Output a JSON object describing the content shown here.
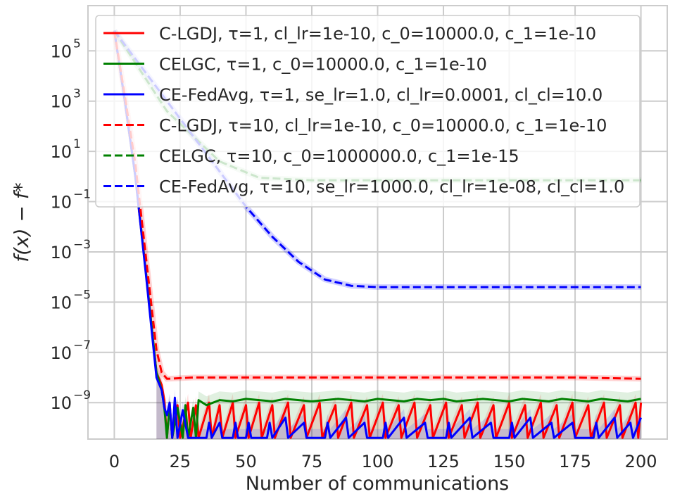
{
  "chart_data": {
    "type": "line",
    "title": "",
    "xlabel": "Number of communications",
    "ylabel": "f(x) − f*",
    "xlim": [
      -10,
      210
    ],
    "ylim_log10": [
      -10.45,
      6.8
    ],
    "y_scale": "log",
    "grid": true,
    "legend_position": "top-left",
    "x_ticks": [
      0,
      25,
      50,
      75,
      100,
      125,
      150,
      175,
      200
    ],
    "y_ticks": [
      {
        "base": "10",
        "exp": "5",
        "log": 5
      },
      {
        "base": "10",
        "exp": "3",
        "log": 3
      },
      {
        "base": "10",
        "exp": "1",
        "log": 1
      },
      {
        "base": "10",
        "exp": "−1",
        "log": -1
      },
      {
        "base": "10",
        "exp": "−3",
        "log": -3
      },
      {
        "base": "10",
        "exp": "−5",
        "log": -5
      },
      {
        "base": "10",
        "exp": "−7",
        "log": -7
      },
      {
        "base": "10",
        "exp": "−9",
        "log": -9
      }
    ],
    "series": [
      {
        "name": "C-LGDJ, τ=1, cl_lr=1e-10, c_0=10000.0, c_1=1e-10",
        "color": "#ff0000",
        "dash": false,
        "points": [
          [
            0,
            5.8
          ],
          [
            4,
            3.0
          ],
          [
            8,
            0.0
          ],
          [
            12,
            -3.8
          ],
          [
            16,
            -7.8
          ],
          [
            18,
            -8.3
          ],
          [
            19,
            -8.9
          ],
          [
            20,
            -10.4
          ],
          [
            21,
            -9.0
          ],
          [
            22,
            -10.4
          ],
          [
            24,
            -9.1
          ],
          [
            25,
            -10.4
          ],
          [
            28,
            -9.0
          ],
          [
            29,
            -10.4
          ],
          [
            31,
            -9.1
          ],
          [
            32,
            -10.4
          ],
          [
            36,
            -9.0
          ],
          [
            37,
            -10.4
          ],
          [
            40,
            -9.1
          ],
          [
            41,
            -10.4
          ],
          [
            45,
            -9.0
          ],
          [
            46,
            -10.4
          ],
          [
            50,
            -9.1
          ],
          [
            51,
            -10.4
          ],
          [
            55,
            -9.0
          ],
          [
            56,
            -10.4
          ],
          [
            60,
            -9.1
          ],
          [
            61,
            -10.4
          ],
          [
            66,
            -9.0
          ],
          [
            67,
            -10.4
          ],
          [
            72,
            -9.1
          ],
          [
            73,
            -10.4
          ],
          [
            78,
            -9.0
          ],
          [
            79,
            -10.4
          ],
          [
            84,
            -9.1
          ],
          [
            85,
            -10.4
          ],
          [
            90,
            -9.0
          ],
          [
            91,
            -10.4
          ],
          [
            96,
            -9.1
          ],
          [
            97,
            -10.4
          ],
          [
            102,
            -9.0
          ],
          [
            103,
            -10.4
          ],
          [
            108,
            -9.1
          ],
          [
            109,
            -10.4
          ],
          [
            114,
            -9.0
          ],
          [
            115,
            -10.4
          ],
          [
            120,
            -9.1
          ],
          [
            121,
            -10.4
          ],
          [
            126,
            -9.0
          ],
          [
            127,
            -10.4
          ],
          [
            132,
            -9.1
          ],
          [
            133,
            -10.4
          ],
          [
            138,
            -9.0
          ],
          [
            139,
            -10.4
          ],
          [
            144,
            -9.1
          ],
          [
            145,
            -10.4
          ],
          [
            150,
            -9.0
          ],
          [
            151,
            -10.4
          ],
          [
            156,
            -9.1
          ],
          [
            157,
            -10.4
          ],
          [
            162,
            -9.0
          ],
          [
            163,
            -10.4
          ],
          [
            168,
            -9.1
          ],
          [
            169,
            -10.4
          ],
          [
            174,
            -9.0
          ],
          [
            175,
            -10.4
          ],
          [
            180,
            -9.1
          ],
          [
            181,
            -10.4
          ],
          [
            186,
            -9.0
          ],
          [
            187,
            -10.4
          ],
          [
            192,
            -9.1
          ],
          [
            193,
            -10.4
          ],
          [
            198,
            -9.0
          ],
          [
            199,
            -10.4
          ],
          [
            200,
            -9.0
          ]
        ]
      },
      {
        "name": "CELGC, τ=1, c_0=10000.0, c_1=1e-10",
        "color": "#008000",
        "dash": false,
        "points": [
          [
            0,
            5.8
          ],
          [
            4,
            3.0
          ],
          [
            8,
            0.0
          ],
          [
            12,
            -3.8
          ],
          [
            16,
            -7.8
          ],
          [
            18,
            -8.5
          ],
          [
            19,
            -9.2
          ],
          [
            20,
            -10.4
          ],
          [
            21,
            -9.1
          ],
          [
            22,
            -10.4
          ],
          [
            24,
            -9.2
          ],
          [
            26,
            -10.4
          ],
          [
            27,
            -9.1
          ],
          [
            28,
            -10.4
          ],
          [
            30,
            -9.2
          ],
          [
            31,
            -10.4
          ],
          [
            32,
            -8.9
          ],
          [
            35,
            -9.1
          ],
          [
            40,
            -8.9
          ],
          [
            45,
            -8.95
          ],
          [
            50,
            -8.85
          ],
          [
            55,
            -8.9
          ],
          [
            60,
            -8.95
          ],
          [
            65,
            -8.85
          ],
          [
            70,
            -8.9
          ],
          [
            75,
            -8.95
          ],
          [
            80,
            -8.9
          ],
          [
            85,
            -8.85
          ],
          [
            90,
            -8.9
          ],
          [
            95,
            -8.95
          ],
          [
            100,
            -8.85
          ],
          [
            105,
            -8.9
          ],
          [
            110,
            -8.95
          ],
          [
            115,
            -8.85
          ],
          [
            120,
            -8.9
          ],
          [
            125,
            -8.85
          ],
          [
            130,
            -8.95
          ],
          [
            135,
            -8.9
          ],
          [
            140,
            -8.85
          ],
          [
            145,
            -8.9
          ],
          [
            150,
            -8.95
          ],
          [
            155,
            -8.85
          ],
          [
            160,
            -8.9
          ],
          [
            165,
            -8.95
          ],
          [
            170,
            -8.85
          ],
          [
            175,
            -8.9
          ],
          [
            180,
            -8.95
          ],
          [
            185,
            -8.85
          ],
          [
            190,
            -8.9
          ],
          [
            195,
            -8.95
          ],
          [
            200,
            -8.85
          ]
        ]
      },
      {
        "name": "CE-FedAvg, τ=1, se_lr=1.0, cl_lr=0.0001, cl_cl=10.0",
        "color": "#0000ff",
        "dash": false,
        "points": [
          [
            0,
            5.8
          ],
          [
            4,
            3.0
          ],
          [
            8,
            0.0
          ],
          [
            12,
            -3.9
          ],
          [
            16,
            -8.0
          ],
          [
            18,
            -8.5
          ],
          [
            19,
            -9.2
          ],
          [
            20,
            -9.5
          ],
          [
            21,
            -9.0
          ],
          [
            22,
            -10.4
          ],
          [
            23,
            -8.8
          ],
          [
            24,
            -10.4
          ],
          [
            26,
            -9.3
          ],
          [
            28,
            -10.4
          ],
          [
            35,
            -10.4
          ],
          [
            36,
            -9.8
          ],
          [
            37,
            -10.4
          ],
          [
            40,
            -9.8
          ],
          [
            41,
            -10.4
          ],
          [
            45,
            -10.4
          ],
          [
            46,
            -9.8
          ],
          [
            47,
            -10.4
          ],
          [
            50,
            -10.4
          ],
          [
            51,
            -9.8
          ],
          [
            52,
            -10.4
          ],
          [
            58,
            -10.4
          ],
          [
            59,
            -9.8
          ],
          [
            60,
            -10.4
          ],
          [
            65,
            -9.6
          ],
          [
            66,
            -10.4
          ],
          [
            72,
            -9.8
          ],
          [
            73,
            -10.4
          ],
          [
            80,
            -10.4
          ],
          [
            81,
            -9.8
          ],
          [
            82,
            -10.4
          ],
          [
            88,
            -9.6
          ],
          [
            89,
            -10.4
          ],
          [
            95,
            -9.8
          ],
          [
            96,
            -10.4
          ],
          [
            102,
            -10.4
          ],
          [
            103,
            -9.8
          ],
          [
            104,
            -10.4
          ],
          [
            110,
            -9.6
          ],
          [
            111,
            -10.4
          ],
          [
            118,
            -9.8
          ],
          [
            119,
            -10.4
          ],
          [
            126,
            -10.4
          ],
          [
            127,
            -9.8
          ],
          [
            128,
            -10.4
          ],
          [
            135,
            -9.6
          ],
          [
            136,
            -10.4
          ],
          [
            143,
            -9.8
          ],
          [
            144,
            -10.4
          ],
          [
            150,
            -10.4
          ],
          [
            151,
            -9.8
          ],
          [
            152,
            -10.4
          ],
          [
            158,
            -9.6
          ],
          [
            159,
            -10.4
          ],
          [
            166,
            -9.8
          ],
          [
            167,
            -10.4
          ],
          [
            174,
            -9.8
          ],
          [
            175,
            -10.4
          ],
          [
            182,
            -10.4
          ],
          [
            183,
            -9.8
          ],
          [
            184,
            -10.4
          ],
          [
            190,
            -9.6
          ],
          [
            191,
            -10.4
          ],
          [
            196,
            -9.8
          ],
          [
            197,
            -10.4
          ],
          [
            200,
            -9.6
          ]
        ]
      },
      {
        "name": "C-LGDJ, τ=10, cl_lr=1e-10, c_0=10000.0, c_1=1e-10",
        "color": "#ff0000",
        "dash": true,
        "points": [
          [
            0,
            5.8
          ],
          [
            4,
            3.2
          ],
          [
            8,
            0.5
          ],
          [
            12,
            -3.2
          ],
          [
            16,
            -6.9
          ],
          [
            18,
            -7.8
          ],
          [
            20,
            -8.05
          ],
          [
            30,
            -8.0
          ],
          [
            50,
            -8.0
          ],
          [
            75,
            -8.0
          ],
          [
            100,
            -8.0
          ],
          [
            125,
            -8.0
          ],
          [
            150,
            -8.0
          ],
          [
            175,
            -8.0
          ],
          [
            200,
            -8.05
          ]
        ]
      },
      {
        "name": "CELGC, τ=10, c_0=1000000.0, c_1=1e-15",
        "color": "#008000",
        "dash": true,
        "points": [
          [
            0,
            5.8
          ],
          [
            20,
            2.6
          ],
          [
            40,
            0.6
          ],
          [
            55,
            -0.05
          ],
          [
            75,
            -0.15
          ],
          [
            100,
            -0.15
          ],
          [
            150,
            -0.15
          ],
          [
            200,
            -0.15
          ]
        ]
      },
      {
        "name": "CE-FedAvg, τ=10, se_lr=1000.0, cl_lr=1e-08, cl_cl=1.0",
        "color": "#0000ff",
        "dash": true,
        "points": [
          [
            0,
            5.8
          ],
          [
            10,
            4.4
          ],
          [
            20,
            3.0
          ],
          [
            30,
            1.6
          ],
          [
            40,
            0.2
          ],
          [
            50,
            -1.2
          ],
          [
            60,
            -2.4
          ],
          [
            70,
            -3.4
          ],
          [
            80,
            -4.1
          ],
          [
            90,
            -4.35
          ],
          [
            100,
            -4.4
          ],
          [
            125,
            -4.4
          ],
          [
            150,
            -4.4
          ],
          [
            175,
            -4.4
          ],
          [
            200,
            -4.4
          ]
        ]
      }
    ]
  }
}
